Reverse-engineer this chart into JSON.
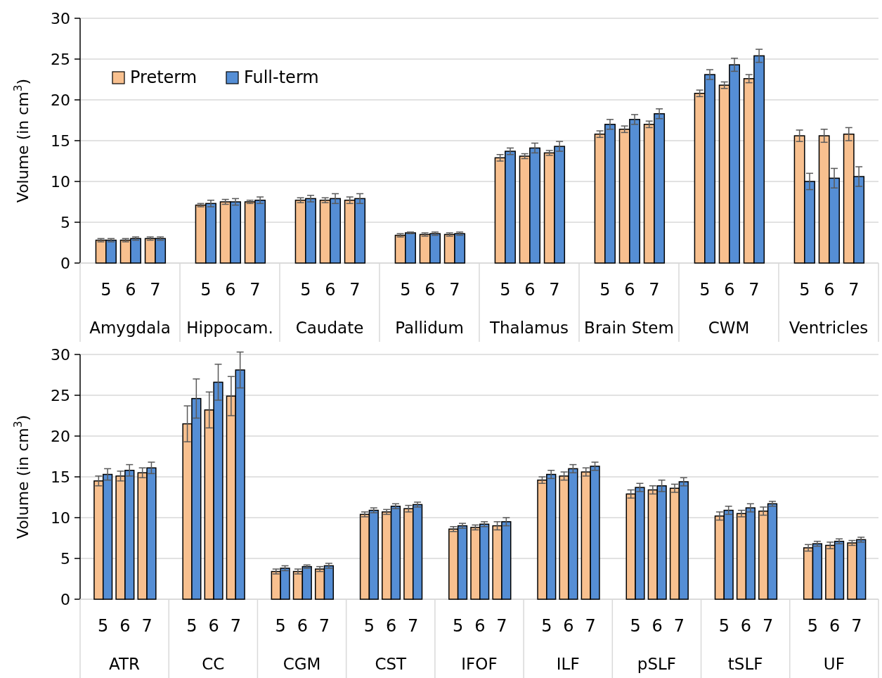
{
  "chart_data": [
    {
      "type": "bar",
      "ylabel": "Volume (in cm$^{3}$)",
      "categories": [
        "5",
        "6",
        "7",
        "5",
        "6",
        "7",
        "5",
        "6",
        "7",
        "5",
        "6",
        "7",
        "5",
        "6",
        "7",
        "5",
        "6",
        "7",
        "5",
        "6",
        "7",
        "5",
        "6",
        "7"
      ],
      "annotations": [
        "Amygdala",
        "Hippocam.",
        "Caudate",
        "Pallidum",
        "Thalamus",
        "Brain Stem",
        "CWM",
        "Ventricles"
      ],
      "series": [
        {
          "name": "Preterm",
          "color": "#f8c08f",
          "values": [
            2.8,
            2.8,
            3.0,
            7.1,
            7.5,
            7.5,
            7.7,
            7.7,
            7.7,
            3.4,
            3.5,
            3.5,
            12.9,
            13.1,
            13.5,
            15.8,
            16.4,
            17.0,
            20.8,
            21.8,
            22.6,
            15.6,
            15.6,
            15.8
          ],
          "errors": [
            0.2,
            0.2,
            0.2,
            0.2,
            0.3,
            0.2,
            0.3,
            0.3,
            0.4,
            0.2,
            0.2,
            0.2,
            0.4,
            0.3,
            0.3,
            0.4,
            0.4,
            0.4,
            0.4,
            0.4,
            0.5,
            0.7,
            0.8,
            0.8
          ]
        },
        {
          "name": "Full-term",
          "color": "#558ed5",
          "values": [
            2.8,
            3.0,
            3.0,
            7.3,
            7.5,
            7.7,
            7.9,
            7.9,
            7.9,
            3.7,
            3.6,
            3.6,
            13.7,
            14.1,
            14.3,
            17.0,
            17.6,
            18.3,
            23.1,
            24.3,
            25.4,
            10.0,
            10.4,
            10.6
          ],
          "errors": [
            0.2,
            0.2,
            0.2,
            0.4,
            0.4,
            0.4,
            0.4,
            0.6,
            0.6,
            0.1,
            0.2,
            0.2,
            0.4,
            0.6,
            0.6,
            0.6,
            0.6,
            0.6,
            0.6,
            0.8,
            0.8,
            1.0,
            1.2,
            1.2
          ]
        }
      ],
      "ylim": [
        0,
        30
      ],
      "yticks": [
        0,
        5,
        10,
        15,
        20,
        25,
        30
      ],
      "grid": "y",
      "legend": "top left"
    },
    {
      "type": "bar",
      "ylabel": "Volume (in cm$^{3}$)",
      "categories": [
        "5",
        "6",
        "7",
        "5",
        "6",
        "7",
        "5",
        "6",
        "7",
        "5",
        "6",
        "7",
        "5",
        "6",
        "7",
        "5",
        "6",
        "7",
        "5",
        "6",
        "7",
        "5",
        "6",
        "7",
        "5",
        "6",
        "7"
      ],
      "annotations": [
        "ATR",
        "CC",
        "CGM",
        "CST",
        "IFOF",
        "ILF",
        "pSLF",
        "tSLF",
        "UF"
      ],
      "series": [
        {
          "color": "#f8c08f",
          "values": [
            14.5,
            15.1,
            15.5,
            21.5,
            23.2,
            24.9,
            3.4,
            3.4,
            3.7,
            10.4,
            10.7,
            11.1,
            8.6,
            8.8,
            9.0,
            14.6,
            15.1,
            15.6,
            12.9,
            13.4,
            13.6,
            10.2,
            10.5,
            10.8,
            6.3,
            6.6,
            6.9
          ],
          "errors": [
            0.6,
            0.6,
            0.6,
            2.2,
            2.2,
            2.4,
            0.3,
            0.3,
            0.3,
            0.3,
            0.3,
            0.4,
            0.3,
            0.3,
            0.5,
            0.4,
            0.5,
            0.5,
            0.5,
            0.5,
            0.5,
            0.5,
            0.4,
            0.5,
            0.4,
            0.4,
            0.3
          ]
        },
        {
          "color": "#558ed5",
          "values": [
            15.3,
            15.8,
            16.1,
            24.6,
            26.6,
            28.1,
            3.8,
            4.0,
            4.1,
            10.9,
            11.4,
            11.6,
            9.0,
            9.2,
            9.5,
            15.3,
            16.0,
            16.3,
            13.7,
            13.9,
            14.4,
            10.9,
            11.2,
            11.7,
            6.8,
            7.1,
            7.3
          ],
          "errors": [
            0.7,
            0.7,
            0.7,
            2.4,
            2.2,
            2.2,
            0.3,
            0.2,
            0.3,
            0.3,
            0.3,
            0.3,
            0.3,
            0.3,
            0.5,
            0.5,
            0.5,
            0.5,
            0.5,
            0.7,
            0.5,
            0.5,
            0.5,
            0.3,
            0.3,
            0.3,
            0.3
          ]
        }
      ],
      "ylim": [
        0,
        30
      ],
      "yticks": [
        0,
        5,
        10,
        15,
        20,
        25,
        30
      ],
      "grid": "y"
    }
  ]
}
